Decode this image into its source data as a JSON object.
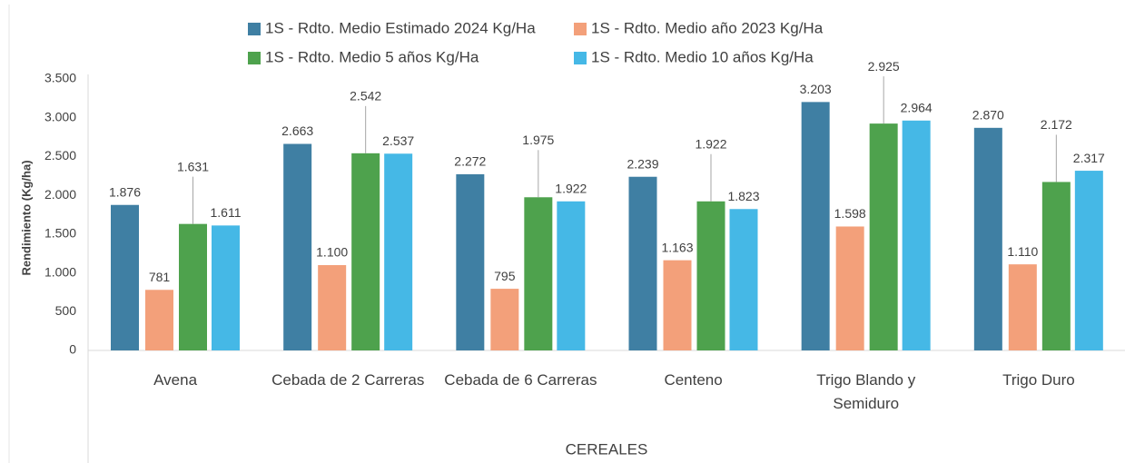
{
  "chart_data": {
    "type": "bar",
    "categories": [
      "Avena",
      "Cebada de 2 Carreras",
      "Cebada de 6 Carreras",
      "Centeno",
      "Trigo Blando y Semiduro",
      "Trigo Duro"
    ],
    "series": [
      {
        "name": "1S - Rdto. Medio Estimado 2024 Kg/Ha",
        "color": "#3f7fa3",
        "values": [
          1876,
          2663,
          2272,
          2239,
          3203,
          2870
        ],
        "value_labels": [
          "1.876",
          "2.663",
          "2.272",
          "2.239",
          "3.203",
          "2.870"
        ]
      },
      {
        "name": "1S - Rdto. Medio año 2023 Kg/Ha",
        "color": "#f3a07a",
        "values": [
          781,
          1100,
          795,
          1163,
          1598,
          1110
        ],
        "value_labels": [
          "781",
          "1.100",
          "795",
          "1.163",
          "1.598",
          "1.110"
        ]
      },
      {
        "name": "1S - Rdto. Medio 5 años Kg/Ha",
        "color": "#4ea24d",
        "values": [
          1631,
          2542,
          1975,
          1922,
          2925,
          2172
        ],
        "value_labels": [
          "1.631",
          "2.542",
          "1.975",
          "1.922",
          "2.925",
          "2.172"
        ]
      },
      {
        "name": "1S - Rdto. Medio 10 años Kg/Ha",
        "color": "#45b8e6",
        "values": [
          1611,
          2537,
          1922,
          1823,
          2964,
          2317
        ],
        "value_labels": [
          "1.611",
          "2.537",
          "1.922",
          "1.823",
          "2.964",
          "2.317"
        ]
      }
    ],
    "ylabel": "Rendimiento (Kg/ha)",
    "xlabel": "CEREALES",
    "ylim": [
      0,
      3500
    ],
    "yticks": [
      0,
      500,
      {
        "value": 1000,
        "label": "1.000"
      },
      {
        "value": 1500,
        "label": "1.500"
      },
      {
        "value": 2000,
        "label": "2.000"
      },
      {
        "value": 2500,
        "label": "2.500"
      },
      {
        "value": 3000,
        "label": "3.000"
      },
      {
        "value": 3500,
        "label": "3.500"
      }
    ],
    "grid": false,
    "legend": "top"
  }
}
